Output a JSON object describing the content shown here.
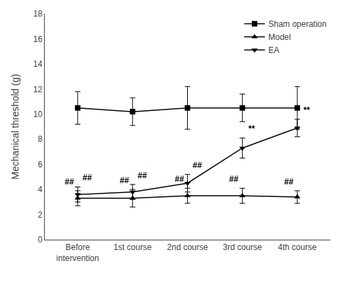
{
  "chart_data": {
    "type": "line",
    "categories": [
      "Before\nintervention",
      "1st course",
      "2nd course",
      "3rd course",
      "4th course"
    ],
    "series": [
      {
        "name": "Sham operation",
        "values": [
          10.5,
          10.2,
          10.5,
          10.5,
          10.5
        ],
        "errors": [
          1.3,
          1.1,
          1.7,
          1.1,
          1.7
        ],
        "marker": "square"
      },
      {
        "name": "Model",
        "values": [
          3.3,
          3.3,
          3.5,
          3.5,
          3.4
        ],
        "errors": [
          0.6,
          0.7,
          0.6,
          0.6,
          0.5
        ],
        "marker": "triangle-up"
      },
      {
        "name": "EA",
        "values": [
          3.6,
          3.8,
          4.5,
          7.3,
          8.9
        ],
        "errors": [
          0.6,
          0.6,
          0.7,
          0.8,
          0.7
        ],
        "marker": "triangle-down"
      }
    ],
    "color": "#000000",
    "ylabel": "Mechanical threshold (g)",
    "ylim": [
      0,
      18
    ],
    "yticks": [
      0,
      2,
      4,
      6,
      8,
      10,
      12,
      14,
      16,
      18
    ],
    "grid": false,
    "legend": "upper right",
    "annotations": [
      {
        "text": "##",
        "category": "Before\nintervention",
        "series": "Model"
      },
      {
        "text": "##",
        "category": "Before\nintervention",
        "series": "EA"
      },
      {
        "text": "##",
        "category": "1st course",
        "series": "Model"
      },
      {
        "text": "##",
        "category": "1st course",
        "series": "EA"
      },
      {
        "text": "##",
        "category": "2nd course",
        "series": "Model"
      },
      {
        "text": "##",
        "category": "2nd course",
        "series": "EA"
      },
      {
        "text": "**",
        "category": "3rd course",
        "series": "EA"
      },
      {
        "text": "##",
        "category": "3rd course",
        "series": "Model"
      },
      {
        "text": "**",
        "category": "4th course",
        "series": "EA"
      },
      {
        "text": "##",
        "category": "4th course",
        "series": "Model"
      }
    ]
  }
}
